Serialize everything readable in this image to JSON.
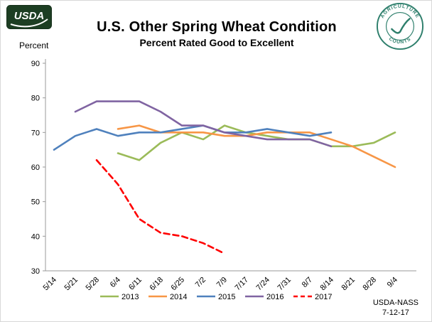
{
  "branding": {
    "usda_wordmark": "USDA",
    "seal_top": "AGRICULTURE",
    "seal_bottom": "COUNTS"
  },
  "footer": {
    "agency": "USDA-NASS",
    "date": "7-12-17"
  },
  "chart_data": {
    "type": "line",
    "title": "U.S. Other Spring Wheat Condition",
    "subtitle": "Percent Rated Good to Excellent",
    "xlabel": "",
    "ylabel": "Percent",
    "ylim": [
      30,
      90
    ],
    "yticks": [
      30,
      40,
      50,
      60,
      70,
      80,
      90
    ],
    "grid": false,
    "legend_position": "bottom",
    "categories": [
      "5/14",
      "5/21",
      "5/28",
      "6/4",
      "6/11",
      "6/18",
      "6/25",
      "7/2",
      "7/9",
      "7/17",
      "7/24",
      "7/31",
      "8/7",
      "8/14",
      "8/21",
      "8/28",
      "9/4"
    ],
    "series": [
      {
        "name": "2013",
        "color": "#9BBB59",
        "dashed": false,
        "values": [
          null,
          null,
          null,
          64,
          62,
          67,
          70,
          68,
          72,
          70,
          69,
          68,
          68,
          66,
          66,
          67,
          70
        ]
      },
      {
        "name": "2014",
        "color": "#F79646",
        "dashed": false,
        "values": [
          null,
          null,
          null,
          71,
          72,
          70,
          70,
          70,
          69,
          69,
          70,
          70,
          70,
          68,
          66,
          63,
          60
        ]
      },
      {
        "name": "2015",
        "color": "#4F81BD",
        "dashed": false,
        "values": [
          65,
          69,
          71,
          69,
          70,
          70,
          71,
          72,
          70,
          70,
          71,
          70,
          69,
          70,
          null,
          null,
          null
        ]
      },
      {
        "name": "2016",
        "color": "#8064A2",
        "dashed": false,
        "values": [
          null,
          76,
          79,
          79,
          79,
          76,
          72,
          72,
          70,
          69,
          68,
          68,
          68,
          66,
          null,
          null,
          null
        ]
      },
      {
        "name": "2017",
        "color": "#FF0000",
        "dashed": true,
        "values": [
          null,
          null,
          62,
          55,
          45,
          41,
          40,
          38,
          35,
          null,
          null,
          null,
          null,
          null,
          null,
          null,
          null
        ]
      }
    ]
  }
}
